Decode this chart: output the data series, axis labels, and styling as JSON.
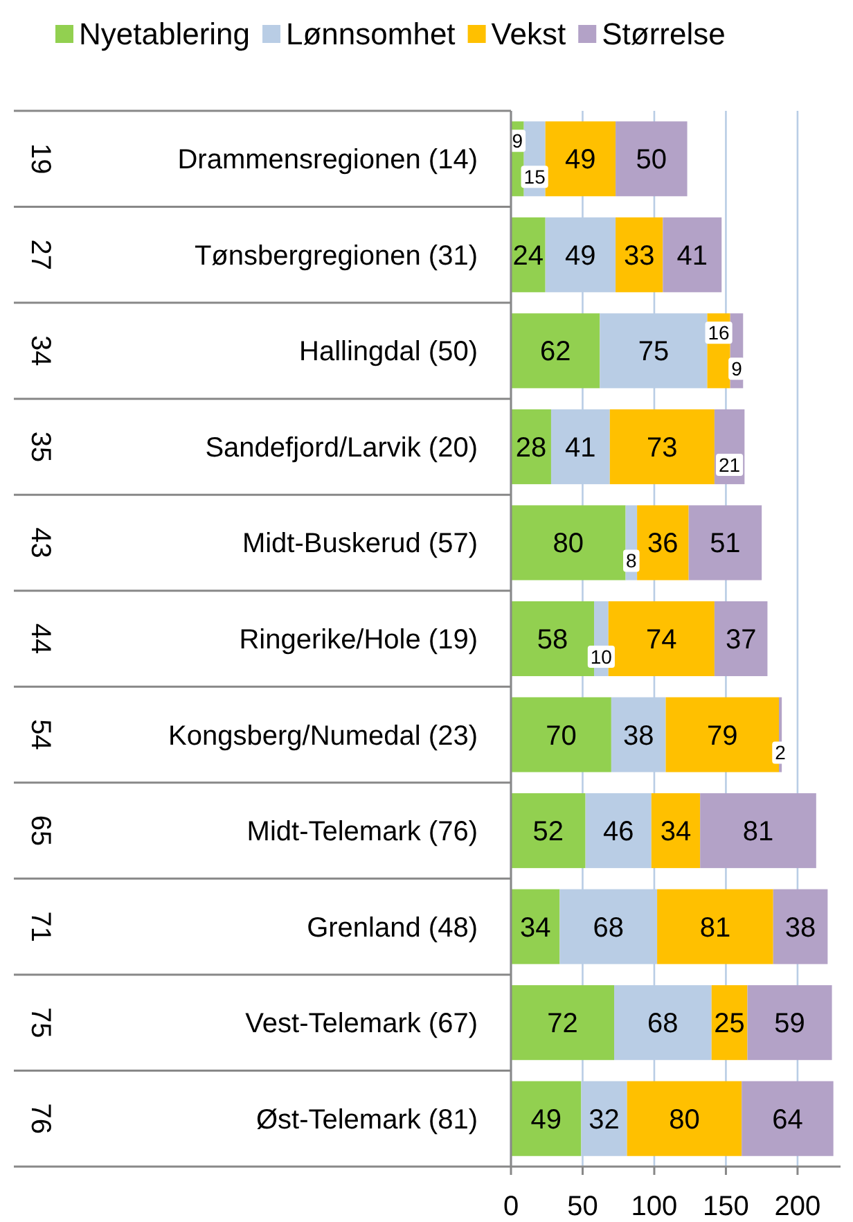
{
  "chart_data": {
    "type": "bar",
    "orientation": "horizontal",
    "stacked": true,
    "data_labels": true,
    "legend": "top",
    "grid": "x",
    "categories": [
      "Drammensregionen (14)",
      "Tønsbergregionen (31)",
      "Hallingdal (50)",
      "Sandefjord/Larvik (20)",
      "Midt-Buskerud (57)",
      "Ringerike/Hole (19)",
      "Kongsberg/Numedal (23)",
      "Midt-Telemark (76)",
      "Grenland (48)",
      "Vest-Telemark (67)",
      "Øst-Telemark (81)"
    ],
    "series": [
      {
        "name": "Nyetablering",
        "color": "#92d050",
        "values": [
          9,
          24,
          62,
          28,
          80,
          58,
          70,
          52,
          34,
          72,
          49
        ]
      },
      {
        "name": "Lønnsomhet",
        "color": "#b9cde5",
        "values": [
          15,
          49,
          75,
          41,
          8,
          10,
          38,
          46,
          68,
          68,
          32
        ]
      },
      {
        "name": "Vekst",
        "color": "#ffc000",
        "values": [
          49,
          33,
          16,
          73,
          36,
          74,
          79,
          34,
          81,
          25,
          80
        ]
      },
      {
        "name": "Størrelse",
        "color": "#b3a2c7",
        "values": [
          50,
          41,
          9,
          21,
          51,
          37,
          2,
          81,
          38,
          59,
          64
        ]
      }
    ],
    "xlim": [
      0,
      230
    ],
    "xticks": [
      0,
      50,
      100,
      150,
      200
    ],
    "annotations": [
      "19",
      "27",
      "34",
      "35",
      "43",
      "44",
      "54",
      "65",
      "71",
      "75",
      "76"
    ]
  }
}
